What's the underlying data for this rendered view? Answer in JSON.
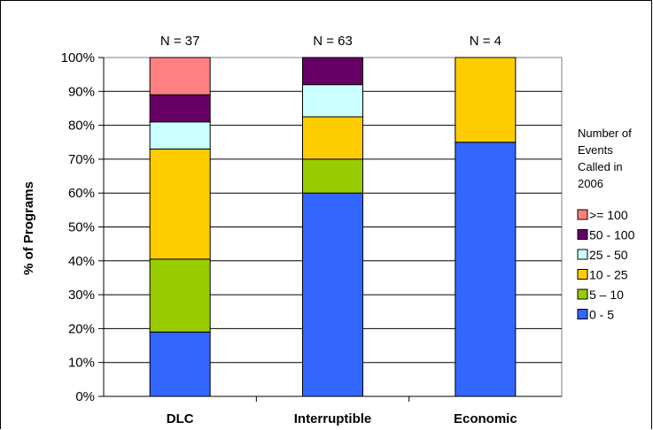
{
  "chart_data": {
    "type": "bar",
    "stacked": true,
    "categories": [
      "DLC",
      "Interruptible",
      "Economic"
    ],
    "annotations": [
      "N = 37",
      "N = 63",
      "N = 4"
    ],
    "ylabel": "% of Programs",
    "yticks": [
      "0%",
      "10%",
      "20%",
      "30%",
      "40%",
      "50%",
      "60%",
      "70%",
      "80%",
      "90%",
      "100%"
    ],
    "ylim": [
      0,
      100
    ],
    "grid": true,
    "legend_title": [
      "Number of",
      "Events",
      "Called in",
      "2006"
    ],
    "legend_placement": "right",
    "series": [
      {
        "name": "0 - 5",
        "color": "#3366FF",
        "values": [
          19,
          60,
          75
        ]
      },
      {
        "name": "5 – 10",
        "color": "#99CC00",
        "values": [
          21.5,
          10,
          0
        ]
      },
      {
        "name": "10 - 25",
        "color": "#FFCC00",
        "values": [
          32.5,
          12.5,
          25
        ]
      },
      {
        "name": "25 - 50",
        "color": "#CCFFFF",
        "values": [
          8,
          9.5,
          0
        ]
      },
      {
        "name": "50 - 100",
        "color": "#660066",
        "values": [
          8,
          8,
          0
        ]
      },
      {
        "name": ">= 100",
        "color": "#FF8080",
        "values": [
          11,
          0,
          0
        ]
      }
    ],
    "legend_order": [
      5,
      4,
      3,
      2,
      1,
      0
    ]
  }
}
